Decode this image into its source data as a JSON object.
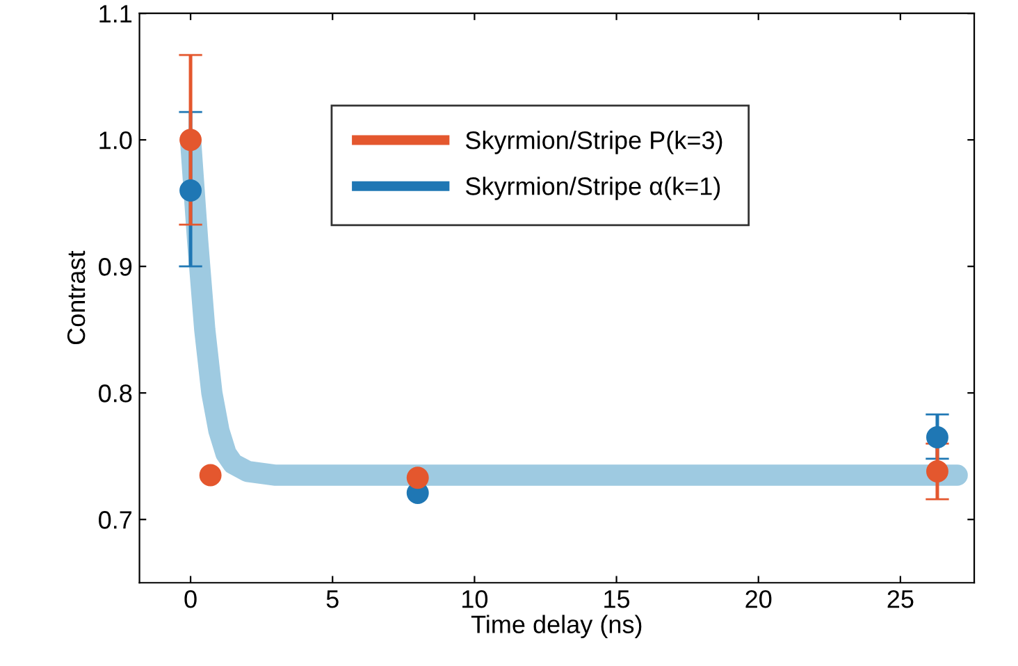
{
  "chart_data": {
    "type": "scatter",
    "xlabel": "Time delay (ns)",
    "ylabel": "Contrast",
    "xlim": [
      -1.8,
      27.6
    ],
    "xticks": [
      0,
      5,
      10,
      15,
      20,
      25
    ],
    "ylim": [
      0.65,
      1.1
    ],
    "yticks": [
      0.7,
      0.8,
      0.9,
      {
        "value": 1,
        "label": "1.0"
      },
      1.1
    ],
    "grid": false,
    "legend": "top",
    "series": [
      {
        "type": "line",
        "color": "#9ecae1",
        "x": [
          0,
          0.25,
          0.5,
          0.75,
          1.0,
          1.25,
          1.5,
          2.0,
          3.0,
          27
        ],
        "values": [
          1.0,
          0.92,
          0.85,
          0.8,
          0.77,
          0.752,
          0.744,
          0.738,
          0.735,
          0.735
        ]
      },
      {
        "name": "Skyrmion/Stripe α(k=1)",
        "marker": "circle",
        "color": "#1f77b4",
        "x": [
          0,
          8,
          26.3
        ],
        "values": [
          0.96,
          0.721,
          0.765
        ],
        "errors": [
          [
            0.9,
            1.022
          ],
          null,
          [
            0.748,
            0.783
          ]
        ]
      },
      {
        "name": "Skyrmion/Stripe P(k=3)",
        "marker": "circle",
        "color": "#e4572e",
        "x": [
          0,
          0.7,
          8,
          26.3
        ],
        "values": [
          1.0,
          0.735,
          0.733,
          0.738
        ],
        "errors": [
          [
            0.933,
            1.067
          ],
          null,
          null,
          [
            0.716,
            0.76
          ]
        ]
      }
    ]
  }
}
